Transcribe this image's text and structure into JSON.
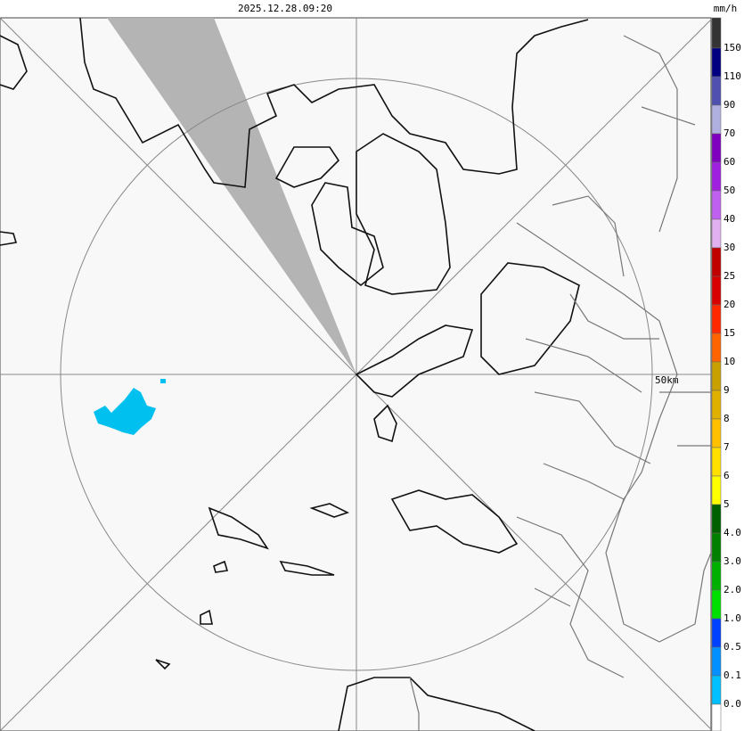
{
  "header": {
    "timestamp": "2025.12.28.09:20",
    "unit": "mm/h"
  },
  "legend": {
    "labels": [
      "150",
      "110",
      "90",
      "70",
      "60",
      "50",
      "40",
      "30",
      "25",
      "20",
      "15",
      "10",
      "9",
      "8",
      "7",
      "6",
      "5",
      "4.0",
      "3.0",
      "2.0",
      "1.0",
      "0.5",
      "0.1",
      "0.0"
    ]
  },
  "map": {
    "range_label": "50km"
  }
}
